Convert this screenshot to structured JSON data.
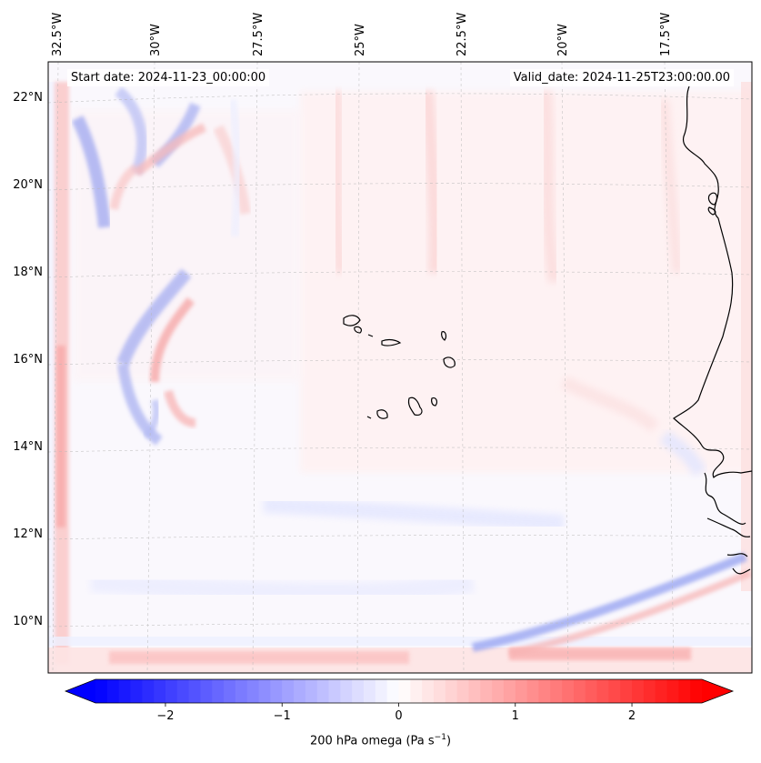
{
  "header": {
    "start_date": "Start date: 2024-11-23_00:00:00",
    "valid_date": "Valid_date: 2024-11-25T23:00:00.00"
  },
  "map": {
    "longitude_labels": [
      "32.5°W",
      "30°W",
      "27.5°W",
      "25°W",
      "22.5°W",
      "20°W",
      "17.5°W"
    ],
    "latitude_labels": [
      "22°N",
      "20°N",
      "18°N",
      "16°N",
      "14°N",
      "12°N",
      "10°N"
    ],
    "field": "200 hPa omega",
    "region": "Cabo Verde / West Africa coast"
  },
  "colorbar": {
    "variable": "200 hPa omega",
    "units_prefix": "(Pa s",
    "units_exp": "−1",
    "units_suffix": ")",
    "tick_labels": [
      "−2",
      "−1",
      "0",
      "1",
      "2"
    ],
    "tick_values": [
      -2,
      -1,
      0,
      1,
      2
    ],
    "vmin": -2.6,
    "vmax": 2.6,
    "cmap": "bwr",
    "colors": {
      "negative": "#0000ff",
      "zero": "#ffffff",
      "positive": "#ff0000"
    }
  }
}
